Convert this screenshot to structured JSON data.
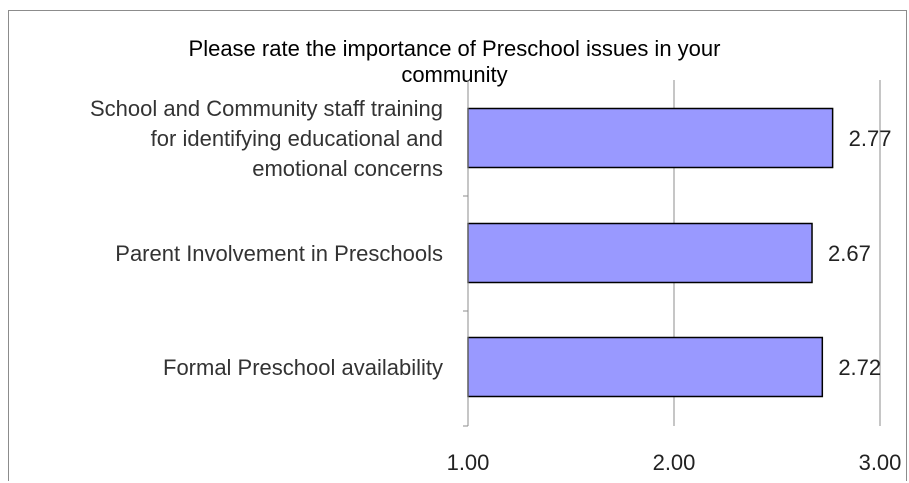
{
  "chart_data": {
    "type": "bar",
    "orientation": "horizontal",
    "title_lines": [
      "Please rate the importance of Preschool issues in your",
      "community"
    ],
    "categories": [
      {
        "id": "staff-training",
        "label_lines": [
          "School and Community staff training",
          "for identifying educational and",
          "emotional concerns"
        ]
      },
      {
        "id": "parent-involvement",
        "label_lines": [
          "Parent Involvement in Preschools"
        ]
      },
      {
        "id": "preschool-availability",
        "label_lines": [
          "Formal Preschool availability"
        ]
      }
    ],
    "values": [
      2.77,
      2.67,
      2.72
    ],
    "value_labels": [
      "2.77",
      "2.67",
      "2.72"
    ],
    "xlim": [
      1.0,
      3.0
    ],
    "xticks": [
      1.0,
      2.0,
      3.0
    ],
    "xtick_labels": [
      "1.00",
      "2.00",
      "3.00"
    ],
    "grid": "vertical",
    "legend": "none",
    "bar_color": "#9999ff",
    "bar_edge_color": "#000000",
    "grid_color": "#8c8c8c"
  }
}
